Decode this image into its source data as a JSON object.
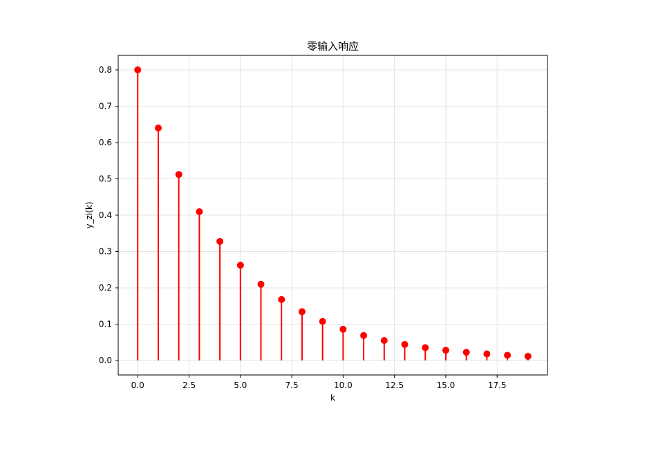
{
  "chart_data": {
    "type": "stem",
    "title": "零输入响应",
    "xlabel": "k",
    "ylabel": "y_zi(k)",
    "xlim": [
      -0.95,
      19.95
    ],
    "ylim": [
      -0.04,
      0.84
    ],
    "xticks": [
      0,
      2.5,
      5,
      7.5,
      10,
      12.5,
      15,
      17.5
    ],
    "xtick_labels": [
      "0.0",
      "2.5",
      "5.0",
      "7.5",
      "10.0",
      "12.5",
      "15.0",
      "17.5"
    ],
    "yticks": [
      0,
      0.1,
      0.2,
      0.3,
      0.4,
      0.5,
      0.6,
      0.7,
      0.8
    ],
    "ytick_labels": [
      "0.0",
      "0.1",
      "0.2",
      "0.3",
      "0.4",
      "0.5",
      "0.6",
      "0.7",
      "0.8"
    ],
    "grid": true,
    "marker_color": "#ff0000",
    "line_color": "#ff0000",
    "x": [
      0,
      1,
      2,
      3,
      4,
      5,
      6,
      7,
      8,
      9,
      10,
      11,
      12,
      13,
      14,
      15,
      16,
      17,
      18,
      19
    ],
    "y": [
      0.8,
      0.64,
      0.512,
      0.4096,
      0.3277,
      0.2621,
      0.2097,
      0.1678,
      0.1342,
      0.1074,
      0.0859,
      0.0687,
      0.055,
      0.044,
      0.0352,
      0.0281,
      0.0225,
      0.018,
      0.0144,
      0.0115
    ]
  }
}
